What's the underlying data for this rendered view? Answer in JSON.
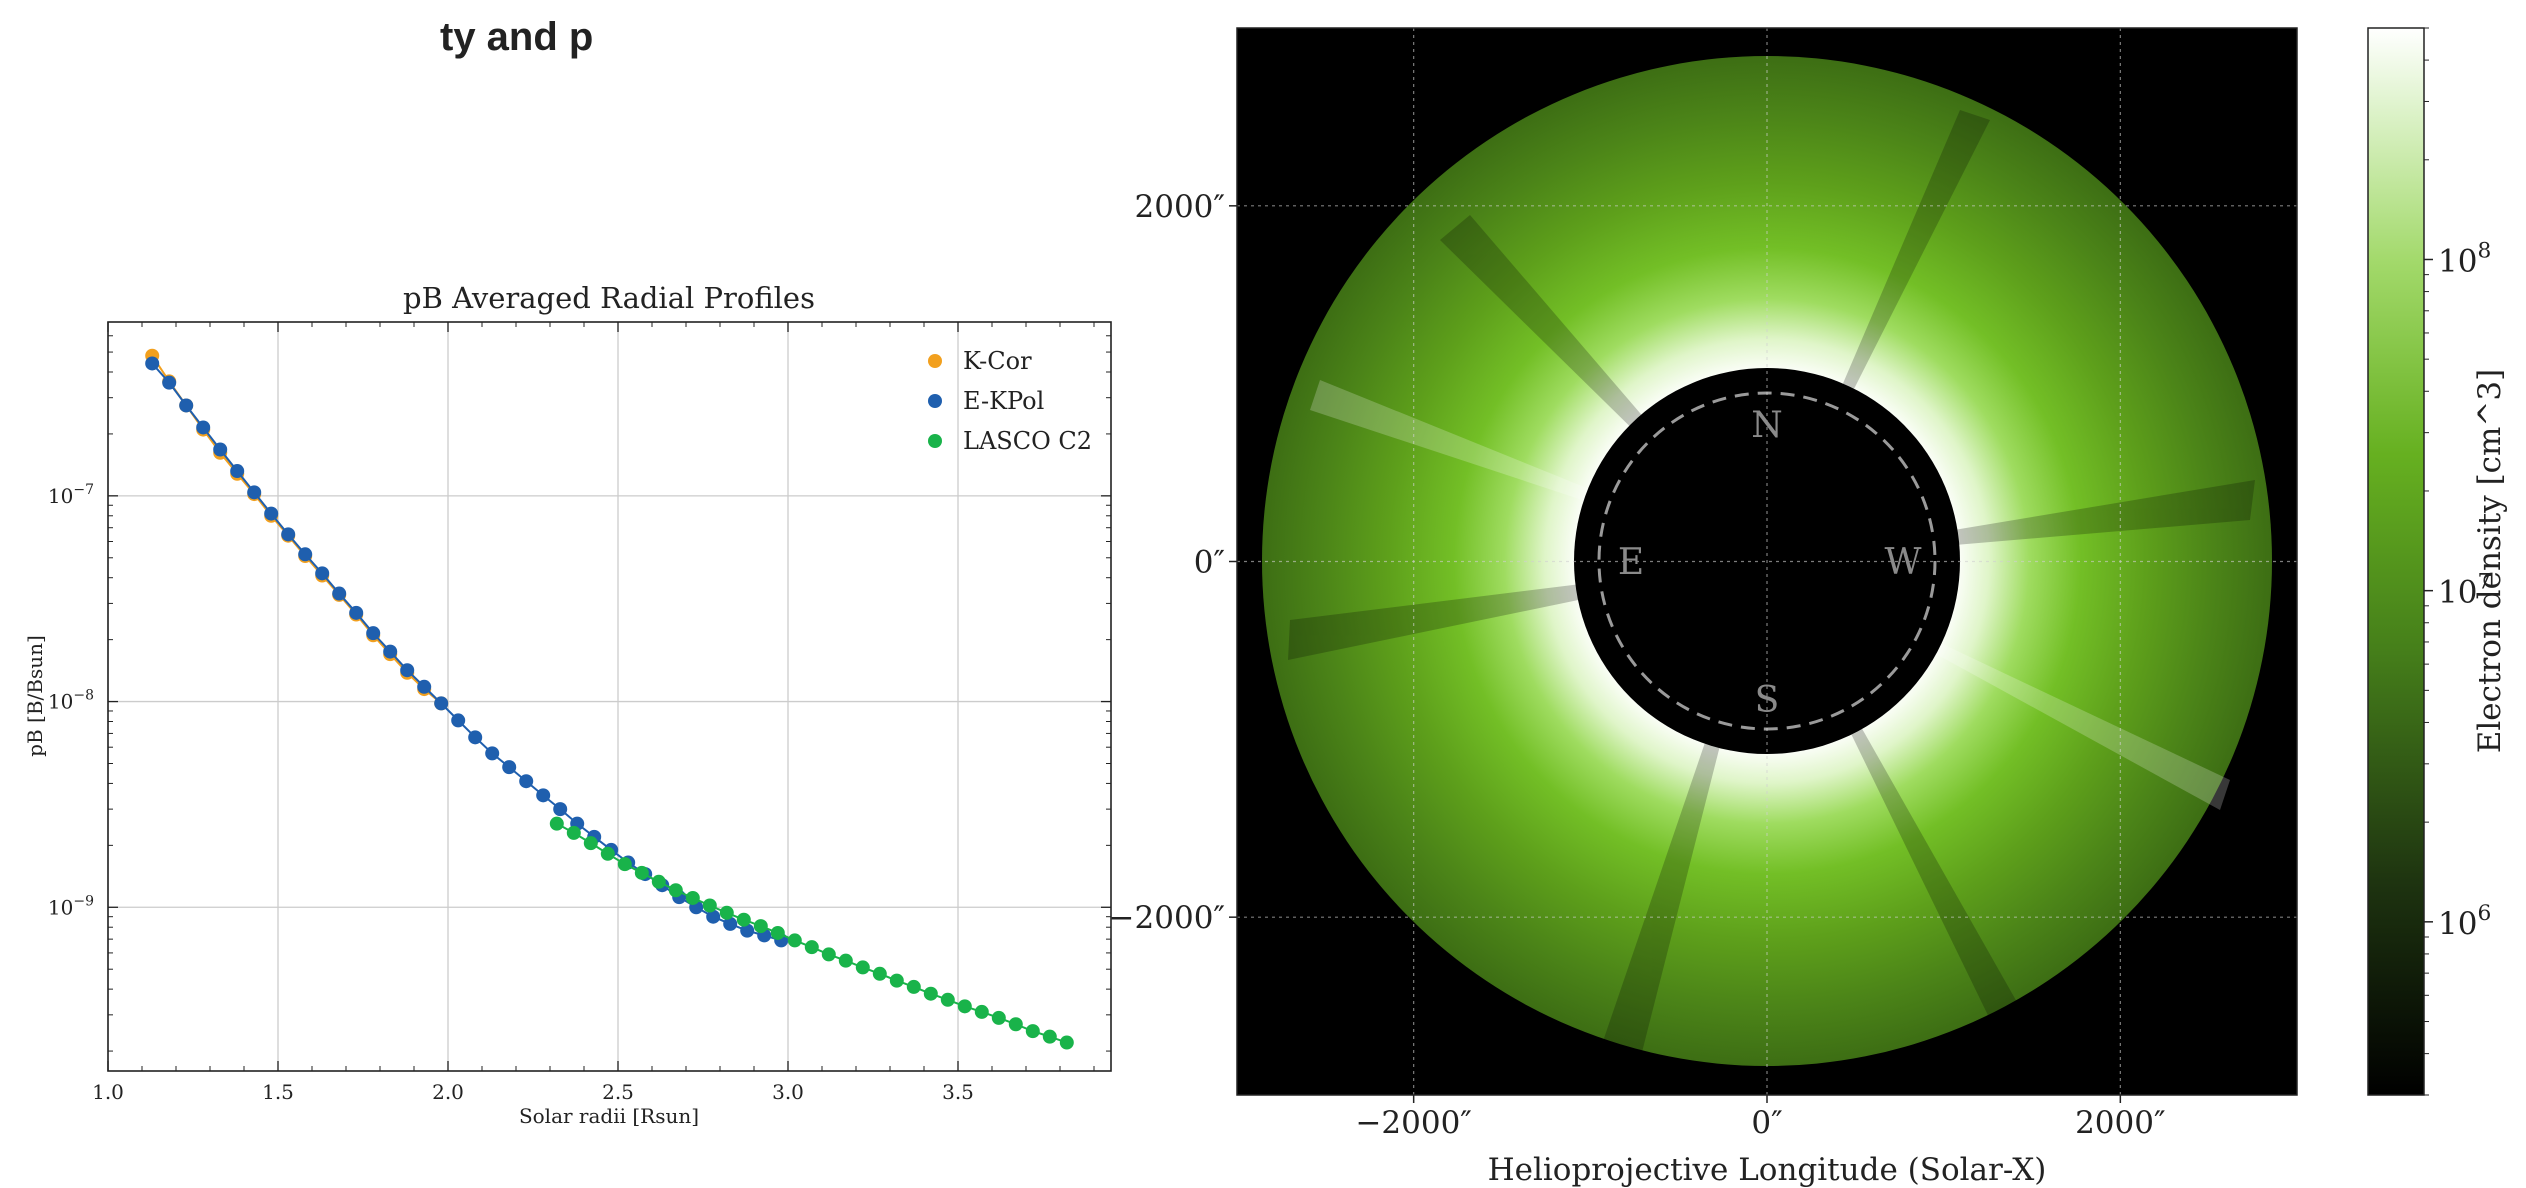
{
  "header_fragment": "ty and p",
  "chart_data": [
    {
      "type": "scatter",
      "title": "pB Averaged Radial Profiles",
      "xlabel": "Solar radii [Rsun]",
      "ylabel": "pB [B/Bsun]",
      "xlim": [
        1.0,
        3.95
      ],
      "ylim": [
        1.6e-10,
        7e-07
      ],
      "y_scale": "log",
      "grid": true,
      "legend_position": "top-right",
      "x_ticks": [
        1.0,
        1.5,
        2.0,
        2.5,
        3.0,
        3.5
      ],
      "x_tick_labels": [
        "1.0",
        "1.5",
        "2.0",
        "2.5",
        "3.0",
        "3.5"
      ],
      "y_ticks": [
        1e-07,
        1e-08,
        1e-09
      ],
      "y_tick_labels": [
        {
          "base": "10",
          "exp": "−7"
        },
        {
          "base": "10",
          "exp": "−8"
        },
        {
          "base": "10",
          "exp": "−9"
        }
      ],
      "series": [
        {
          "name": "K-Cor",
          "color": "#f2a01e",
          "connected": true,
          "x": [
            1.13,
            1.18,
            1.23,
            1.28,
            1.33,
            1.38,
            1.43,
            1.48,
            1.53,
            1.58,
            1.63,
            1.68,
            1.73,
            1.78,
            1.83,
            1.88,
            1.93,
            1.98
          ],
          "y": [
            4.8e-07,
            3.6e-07,
            2.75e-07,
            2.1e-07,
            1.62e-07,
            1.28e-07,
            1.02e-07,
            8e-08,
            6.4e-08,
            5.1e-08,
            4.1e-08,
            3.3e-08,
            2.65e-08,
            2.1e-08,
            1.7e-08,
            1.38e-08,
            1.15e-08,
            9.8e-09
          ]
        },
        {
          "name": "E-KPol",
          "color": "#1f5fae",
          "connected": true,
          "x": [
            1.13,
            1.18,
            1.23,
            1.28,
            1.33,
            1.38,
            1.43,
            1.48,
            1.53,
            1.58,
            1.63,
            1.68,
            1.73,
            1.78,
            1.83,
            1.88,
            1.93,
            1.98,
            2.03,
            2.08,
            2.13,
            2.18,
            2.23,
            2.28,
            2.33,
            2.38,
            2.43,
            2.48,
            2.53,
            2.58,
            2.63,
            2.68,
            2.73,
            2.78,
            2.83,
            2.88,
            2.93,
            2.98
          ],
          "y": [
            4.4e-07,
            3.55e-07,
            2.75e-07,
            2.15e-07,
            1.68e-07,
            1.32e-07,
            1.04e-07,
            8.2e-08,
            6.5e-08,
            5.2e-08,
            4.2e-08,
            3.35e-08,
            2.7e-08,
            2.15e-08,
            1.75e-08,
            1.42e-08,
            1.18e-08,
            9.8e-09,
            8.1e-09,
            6.7e-09,
            5.6e-09,
            4.8e-09,
            4.1e-09,
            3.5e-09,
            3e-09,
            2.55e-09,
            2.2e-09,
            1.9e-09,
            1.65e-09,
            1.45e-09,
            1.28e-09,
            1.12e-09,
            1e-09,
            9e-10,
            8.3e-10,
            7.7e-10,
            7.3e-10,
            6.9e-10
          ]
        },
        {
          "name": "LASCO C2",
          "color": "#19b34a",
          "connected": true,
          "x": [
            2.32,
            2.37,
            2.42,
            2.47,
            2.52,
            2.57,
            2.62,
            2.67,
            2.72,
            2.77,
            2.82,
            2.87,
            2.92,
            2.97,
            3.02,
            3.07,
            3.12,
            3.17,
            3.22,
            3.27,
            3.32,
            3.37,
            3.42,
            3.47,
            3.52,
            3.57,
            3.62,
            3.67,
            3.72,
            3.77,
            3.82
          ],
          "y": [
            2.55e-09,
            2.3e-09,
            2.05e-09,
            1.82e-09,
            1.62e-09,
            1.47e-09,
            1.33e-09,
            1.21e-09,
            1.11e-09,
            1.02e-09,
            9.4e-10,
            8.7e-10,
            8.1e-10,
            7.5e-10,
            6.9e-10,
            6.4e-10,
            5.9e-10,
            5.5e-10,
            5.1e-10,
            4.75e-10,
            4.4e-10,
            4.1e-10,
            3.8e-10,
            3.55e-10,
            3.3e-10,
            3.1e-10,
            2.9e-10,
            2.7e-10,
            2.5e-10,
            2.35e-10,
            2.2e-10
          ]
        }
      ]
    },
    {
      "type": "heatmap",
      "title": "",
      "xlabel": "Helioprojective Longitude (Solar-X)",
      "ylabel": "",
      "xlim": [
        -3000,
        3000
      ],
      "ylim": [
        -3000,
        3000
      ],
      "grid": true,
      "x_ticks": [
        -2000,
        0,
        2000
      ],
      "x_tick_labels": [
        "−2000″",
        "0″",
        "2000″"
      ],
      "y_ticks": [
        2000,
        0,
        -2000
      ],
      "y_tick_labels": [
        "2000″",
        "0″",
        "−2000″"
      ],
      "occulter_radius_arcsec": 1100,
      "solar_limb_radius_arcsec": 960,
      "outer_radius_arcsec": 2830,
      "direction_labels": {
        "north": "N",
        "east": "E",
        "west": "W",
        "south": "S"
      },
      "colormap": "black-green-white",
      "colorbar": {
        "label": "Electron density [cm^-3]",
        "label_text": "Electron density [cm^3]",
        "scale": "log",
        "range": [
          300000.0,
          500000000.0
        ],
        "ticks": [
          1000000.0,
          10000000.0,
          100000000.0
        ],
        "tick_labels": [
          {
            "base": "10",
            "exp": "6"
          },
          {
            "base": "10",
            "exp": "7"
          },
          {
            "base": "10",
            "exp": "8"
          }
        ]
      }
    }
  ]
}
